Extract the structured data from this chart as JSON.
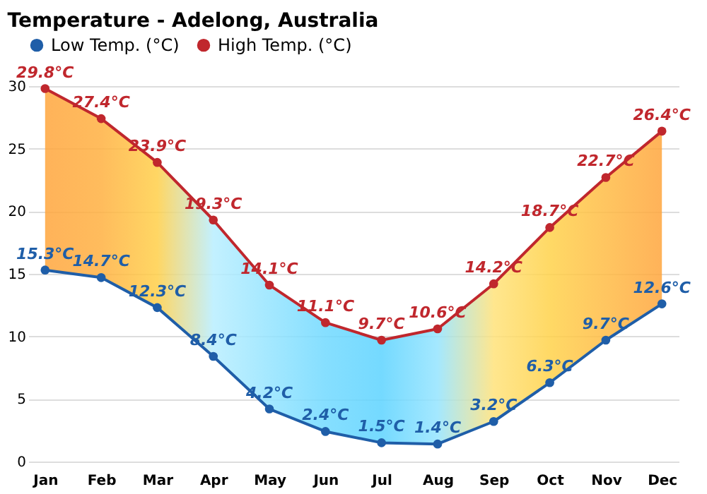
{
  "chart_data": {
    "type": "line",
    "title": "Temperature - Adelong, Australia",
    "categories": [
      "Jan",
      "Feb",
      "Mar",
      "Apr",
      "May",
      "Jun",
      "Jul",
      "Aug",
      "Sep",
      "Oct",
      "Nov",
      "Dec"
    ],
    "ylim": [
      0,
      30
    ],
    "yticks": [
      0,
      5,
      10,
      15,
      20,
      25,
      30
    ],
    "grid": "y",
    "legend": "top left",
    "marker": "circle",
    "line_style": "solid",
    "series": [
      {
        "type": "line",
        "name": "Low Temp. (°C)",
        "color": "#1f5ea8",
        "values": [
          15.3,
          14.7,
          12.3,
          8.4,
          4.2,
          2.4,
          1.5,
          1.4,
          3.2,
          6.3,
          9.7,
          12.6
        ],
        "value_labels": [
          "15.3°C",
          "14.7°C",
          "12.3°C",
          "8.4°C",
          "4.2°C",
          "2.4°C",
          "1.5°C",
          "1.4°C",
          "3.2°C",
          "6.3°C",
          "9.7°C",
          "12.6°C"
        ]
      },
      {
        "type": "line",
        "name": "High Temp. (°C)",
        "color": "#c0272d",
        "values": [
          29.8,
          27.4,
          23.9,
          19.3,
          14.1,
          11.1,
          9.7,
          10.6,
          14.2,
          18.7,
          22.7,
          26.4
        ],
        "value_labels": [
          "29.8°C",
          "27.4°C",
          "23.9°C",
          "19.3°C",
          "14.1°C",
          "11.1°C",
          "9.7°C",
          "10.6°C",
          "14.2°C",
          "18.7°C",
          "22.7°C",
          "26.4°C"
        ],
        "lower": [
          15.3,
          14.7,
          12.3,
          8.4,
          4.2,
          2.4,
          1.5,
          1.4,
          3.2,
          6.3,
          9.7,
          12.6
        ],
        "upper": [
          29.8,
          27.4,
          23.9,
          19.3,
          14.1,
          11.1,
          9.7,
          10.6,
          14.2,
          18.7,
          22.7,
          26.4
        ],
        "colors": [
          "#ffa53c",
          "#ffb040",
          "#ffcf48",
          "#b8eeff",
          "#94e4ff",
          "#70d9ff",
          "#5cd3ff",
          "#94e4ff",
          "#ffe27a",
          "#ffd24a",
          "#ffbb44",
          "#ffa53c"
        ]
      }
    ]
  }
}
